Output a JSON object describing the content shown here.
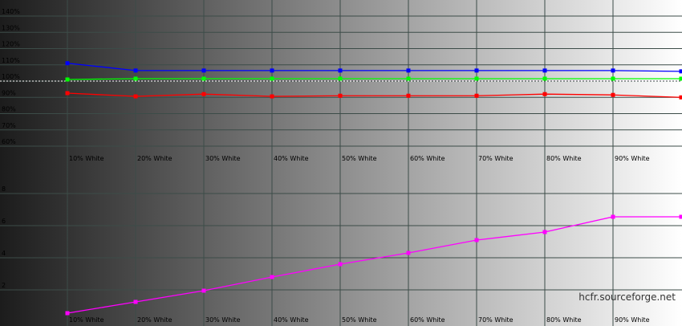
{
  "chart_data": [
    {
      "type": "line",
      "categories": [
        "10% White",
        "20% White",
        "30% White",
        "40% White",
        "50% White",
        "60% White",
        "70% White",
        "80% White",
        "90% White",
        null
      ],
      "series": [
        {
          "name": null,
          "color": "#0000ff",
          "values": [
            111,
            106.5,
            106.5,
            106.5,
            106.5,
            106.5,
            106.5,
            106.5,
            106.5,
            106
          ]
        },
        {
          "name": null,
          "color": "#00ff00",
          "values": [
            101,
            101.5,
            101.5,
            101.5,
            101.5,
            101.5,
            101.5,
            101.5,
            101.5,
            101.5
          ]
        },
        {
          "name": null,
          "color": "#ff0000",
          "values": [
            92.6,
            90.6,
            92,
            90.6,
            91,
            91,
            91,
            92,
            91.5,
            90
          ]
        }
      ],
      "ylim": [
        60,
        140
      ],
      "yticks": [
        {
          "value": 60,
          "label": "60%"
        },
        {
          "value": 70,
          "label": "70%"
        },
        {
          "value": 80,
          "label": "80%"
        },
        {
          "value": 90,
          "label": "90%"
        },
        {
          "value": 100,
          "label": "100%"
        },
        {
          "value": 110,
          "label": "110%"
        },
        {
          "value": 120,
          "label": "120%"
        },
        {
          "value": 130,
          "label": "130%"
        },
        {
          "value": 140,
          "label": "140%"
        }
      ],
      "reference_line": 100,
      "grid": true
    },
    {
      "type": "line",
      "categories": [
        "10% White",
        "20% White",
        "30% White",
        "40% White",
        "50% White",
        "60% White",
        "70% White",
        "80% White",
        "90% White",
        null
      ],
      "series": [
        {
          "name": null,
          "color": "#ff00ff",
          "values": [
            0.55,
            1.25,
            1.95,
            2.8,
            3.6,
            4.3,
            5.1,
            5.6,
            6.55,
            6.55
          ]
        }
      ],
      "ylim": [
        0,
        10
      ],
      "yticks": [
        2,
        4,
        6,
        8
      ],
      "grid": true
    }
  ],
  "watermark": "hcfr.sourceforge.net"
}
